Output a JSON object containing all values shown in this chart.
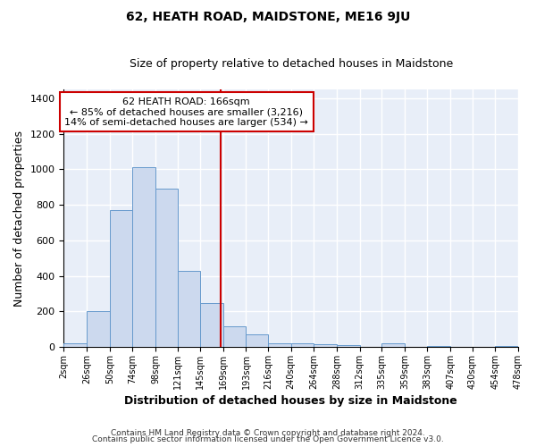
{
  "title": "62, HEATH ROAD, MAIDSTONE, ME16 9JU",
  "subtitle": "Size of property relative to detached houses in Maidstone",
  "xlabel": "Distribution of detached houses by size in Maidstone",
  "ylabel": "Number of detached properties",
  "bar_color": "#ccd9ee",
  "bar_edge_color": "#6699cc",
  "background_color": "#e8eef8",
  "grid_color": "white",
  "property_line_x": 166,
  "property_line_color": "#cc0000",
  "annotation_title": "62 HEATH ROAD: 166sqm",
  "annotation_line1": "← 85% of detached houses are smaller (3,216)",
  "annotation_line2": "14% of semi-detached houses are larger (534) →",
  "annotation_box_edge": "#cc0000",
  "bins": [
    2,
    26,
    50,
    74,
    98,
    121,
    145,
    169,
    193,
    216,
    240,
    264,
    288,
    312,
    335,
    359,
    383,
    407,
    430,
    454,
    478
  ],
  "bin_labels": [
    "2sqm",
    "26sqm",
    "50sqm",
    "74sqm",
    "98sqm",
    "121sqm",
    "145sqm",
    "169sqm",
    "193sqm",
    "216sqm",
    "240sqm",
    "264sqm",
    "288sqm",
    "312sqm",
    "335sqm",
    "359sqm",
    "383sqm",
    "407sqm",
    "430sqm",
    "454sqm",
    "478sqm"
  ],
  "bar_heights": [
    20,
    200,
    770,
    1010,
    890,
    430,
    245,
    115,
    70,
    20,
    20,
    15,
    10,
    0,
    20,
    0,
    5,
    0,
    0,
    5
  ],
  "ylim": [
    0,
    1450
  ],
  "yticks": [
    0,
    200,
    400,
    600,
    800,
    1000,
    1200,
    1400
  ],
  "footer1": "Contains HM Land Registry data © Crown copyright and database right 2024.",
  "footer2": "Contains public sector information licensed under the Open Government Licence v3.0."
}
